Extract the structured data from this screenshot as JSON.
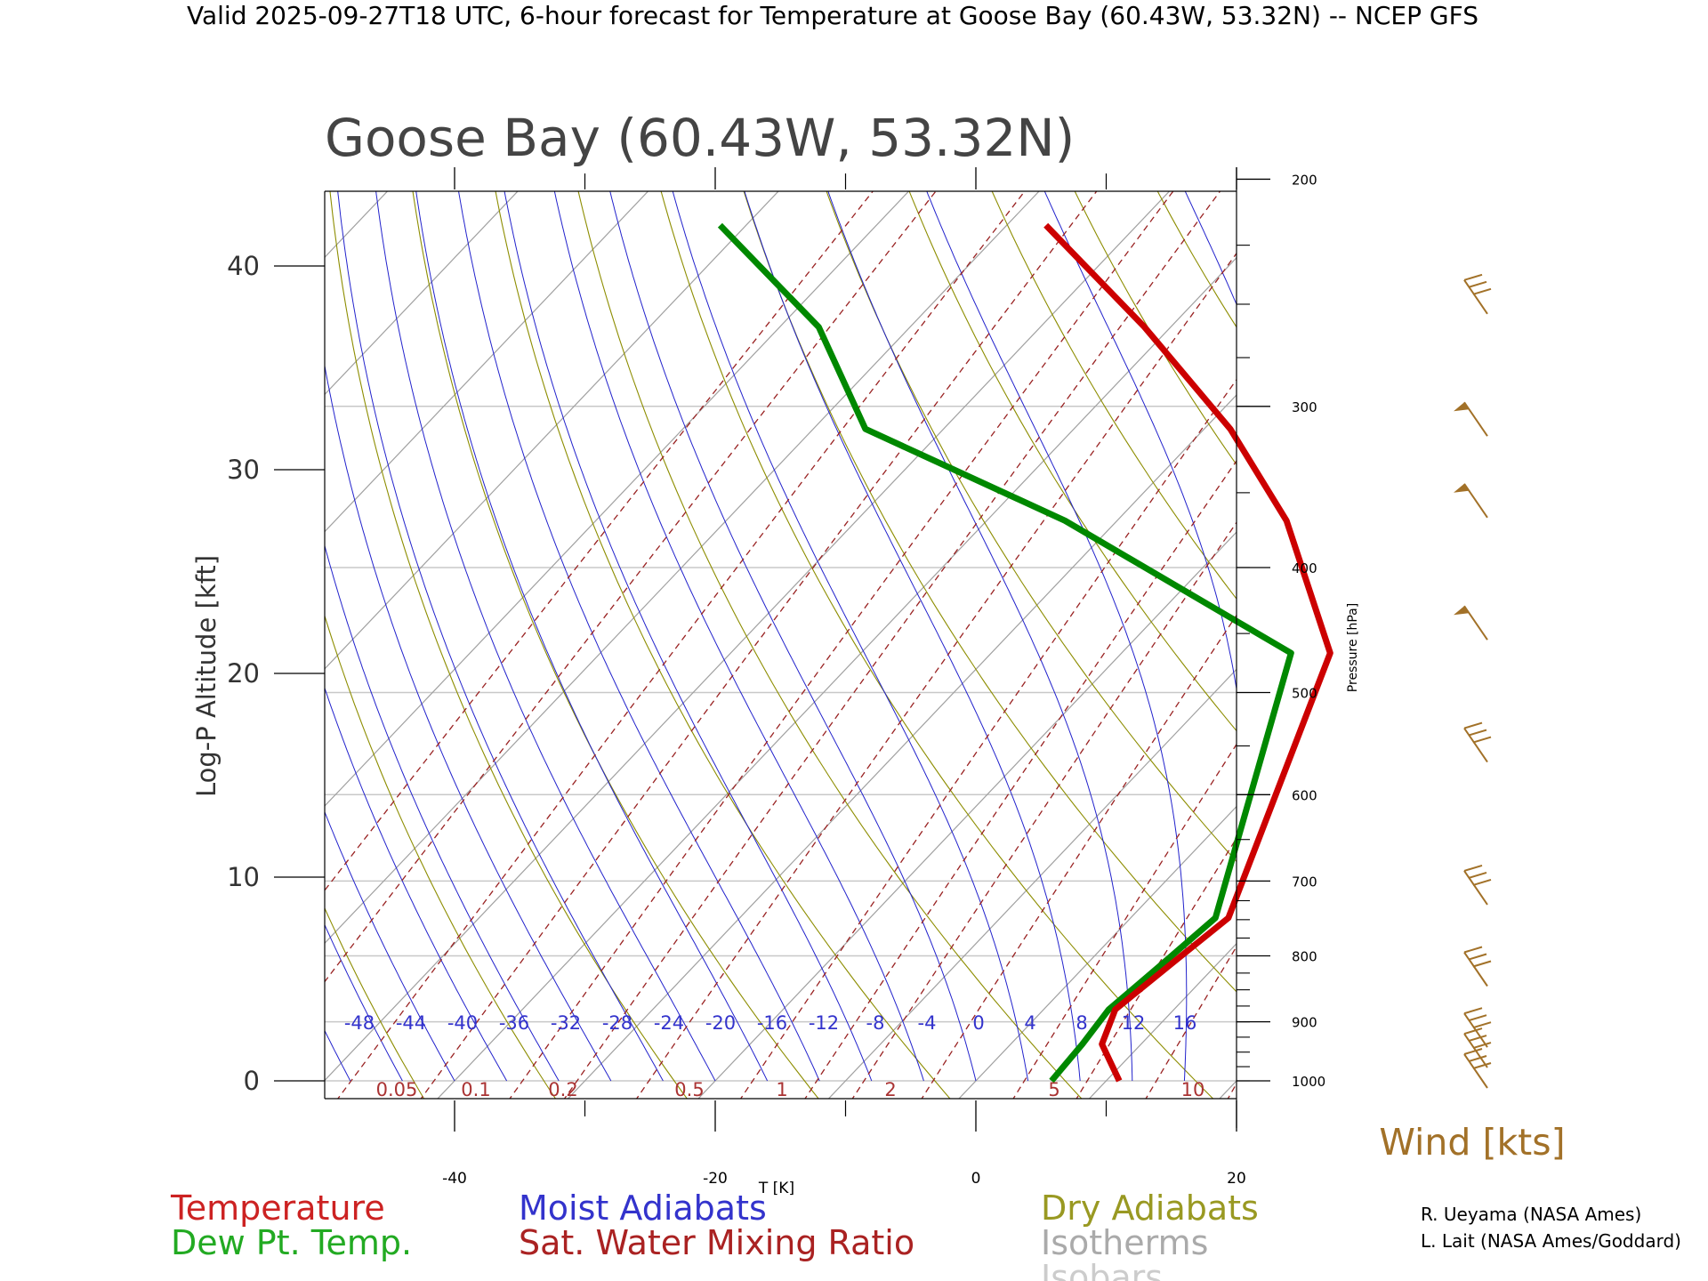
{
  "header": "Valid 2025-09-27T18 UTC, 6-hour forecast for Temperature at Goose Bay (60.43W, 53.32N) -- NCEP GFS",
  "chart_data": {
    "type": "line",
    "subtype": "skew-T log-P diagram",
    "title": "Goose Bay (60.43W, 53.32N)",
    "xlabel": "T [K]",
    "ylabel": "Log-P Altitude [kft]",
    "y2label": "Pressure [hPa]",
    "xlim": [
      -50,
      20
    ],
    "ylim": [
      -1,
      43
    ],
    "x_ticks": [
      -40,
      -20,
      0,
      20
    ],
    "y_ticks": [
      0,
      10,
      20,
      30,
      40
    ],
    "pressure_ticks": [
      1000,
      900,
      800,
      700,
      600,
      500,
      400,
      300,
      200
    ],
    "isotherm_labels": [
      "-48",
      "-44",
      "-40",
      "-36",
      "-32",
      "-28",
      "-24",
      "-20",
      "-16",
      "-12",
      "-8",
      "-4",
      "0",
      "4",
      "8",
      "12",
      "16"
    ],
    "mixing_ratio_labels": [
      "0.05",
      "0.1",
      "0.2",
      "0.5",
      "1",
      "2",
      "5",
      "10"
    ],
    "grid": true,
    "series": [
      {
        "name": "Temperature",
        "color": "#cc0000",
        "points": [
          [
            11,
            0
          ],
          [
            7,
            1.8
          ],
          [
            5.5,
            3.5
          ],
          [
            6.5,
            5.8
          ],
          [
            7.5,
            8
          ]
        ]
      },
      {
        "name": "Dew Pt. Temp.",
        "color": "#008800",
        "points": [
          [
            5.8,
            0
          ],
          [
            5.5,
            1.8
          ],
          [
            5,
            3.5
          ],
          [
            5.8,
            5.8
          ],
          [
            6.5,
            8
          ]
        ]
      }
    ],
    "upper_profiles_skewed": {
      "temperature": [
        [
          7.5,
          8
        ],
        [
          -4,
          21
        ],
        [
          -17,
          27.5
        ],
        [
          -28,
          32
        ],
        [
          -42,
          37
        ],
        [
          -57,
          42
        ]
      ],
      "dewpoint": [
        [
          6.5,
          8
        ],
        [
          -7,
          21
        ],
        [
          -34,
          27.5
        ],
        [
          -56,
          32
        ],
        [
          -67,
          37
        ],
        [
          -82,
          42
        ]
      ]
    },
    "wind_barbs": {
      "label": "Wind [kts]",
      "levels_kft": [
        0,
        1,
        2,
        5,
        9,
        16,
        22,
        28,
        32,
        38
      ],
      "speeds_kt": [
        30,
        30,
        30,
        30,
        30,
        30,
        50,
        50,
        50,
        30
      ]
    },
    "legend": {
      "left": [
        {
          "label": "Temperature",
          "color": "#cc2222"
        },
        {
          "label": "Dew Pt. Temp.",
          "color": "#22aa22"
        }
      ],
      "middle": [
        {
          "label": "Moist Adiabats",
          "color": "#3333cc"
        },
        {
          "label": "Sat. Water Mixing Ratio",
          "color": "#aa2222"
        }
      ],
      "right": [
        {
          "label": "Dry Adiabats",
          "color": "#999922"
        },
        {
          "label": "Isotherms",
          "color": "#aaaaaa"
        },
        {
          "label": "Isobars",
          "color": "#cccccc"
        }
      ]
    }
  },
  "credits": [
    "R. Ueyama (NASA Ames)",
    "L. Lait (NASA Ames/Goddard)"
  ]
}
